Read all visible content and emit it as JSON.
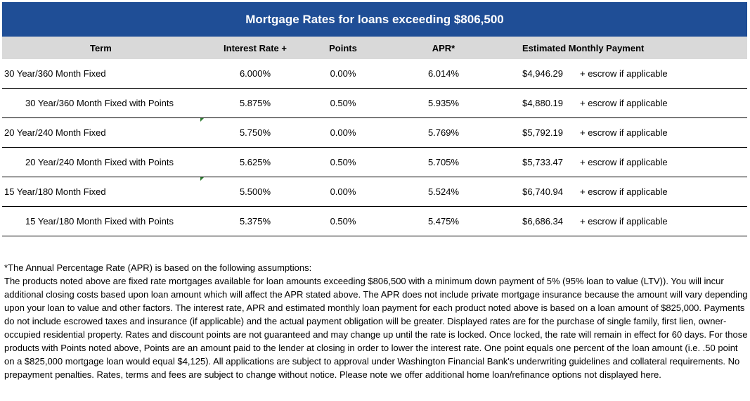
{
  "title": "Mortgage Rates for loans exceeding $806,500",
  "columns": {
    "term": "Term",
    "rate": "Interest Rate +",
    "points": "Points",
    "apr": "APR*",
    "payment": "Estimated Monthly Payment"
  },
  "rows": [
    {
      "term": "30 Year/360 Month Fixed",
      "rate": "6.000%",
      "points": "0.00%",
      "apr": "6.014%",
      "payment": "$4,946.29",
      "escrow": "+ escrow if applicable"
    },
    {
      "term": "30 Year/360 Month Fixed with Points",
      "rate": "5.875%",
      "points": "0.50%",
      "apr": "5.935%",
      "payment": "$4,880.19",
      "escrow": "+ escrow if applicable"
    },
    {
      "term": "20 Year/240 Month Fixed",
      "rate": "5.750%",
      "points": "0.00%",
      "apr": "5.769%",
      "payment": "$5,792.19",
      "escrow": "+ escrow if applicable"
    },
    {
      "term": "20 Year/240 Month Fixed with Points",
      "rate": "5.625%",
      "points": "0.50%",
      "apr": "5.705%",
      "payment": "$5,733.47",
      "escrow": "+ escrow if applicable"
    },
    {
      "term": "15 Year/180 Month Fixed",
      "rate": "5.500%",
      "points": "0.00%",
      "apr": "5.524%",
      "payment": "$6,740.94",
      "escrow": "+ escrow if applicable"
    },
    {
      "term": "15 Year/180 Month Fixed with Points",
      "rate": "5.375%",
      "points": "0.50%",
      "apr": "5.475%",
      "payment": "$6,686.34",
      "escrow": "+ escrow if applicable"
    }
  ],
  "notes": {
    "heading": "*The Annual Percentage Rate (APR) is based on the following assumptions:",
    "body": " The products noted above are fixed rate mortgages available for loan amounts exceeding $806,500  with a minimum down payment of 5% (95% loan to value (LTV)).  You will incur additional closing costs based upon loan amount which will affect the APR stated above. The APR does not include private mortgage insurance because the amount will vary depending upon your loan to value and other factors.  The interest rate, APR and estimated monthly loan payment for each product noted above is based on a loan amount of $825,000.  Payments do not include escrowed taxes and insurance (if applicable) and the actual payment obligation will be greater.  Displayed rates are for the purchase of single family, first lien, owner-occupied residential property. Rates and discount points are not guaranteed and may change up until the rate is locked. Once locked, the rate will remain in effect for 60 days. For those products with Points noted above,  Points are an amount paid to the lender at closing in order to lower the interest rate.  One point equals one percent of the loan amount (i.e. .50  point on a $825,000 mortgage loan would equal $4,125). All applications are subject to approval under Washington Financial Bank's underwriting guidelines and collateral requirements.    No prepayment penalties. Rates, terms and fees are subject to change without notice.  Please note we offer additional home loan/refinance options not displayed here."
  },
  "colors": {
    "title_bg": "#1f4e96",
    "header_bg": "#d9d9d9",
    "marker": "#2e7d32"
  }
}
